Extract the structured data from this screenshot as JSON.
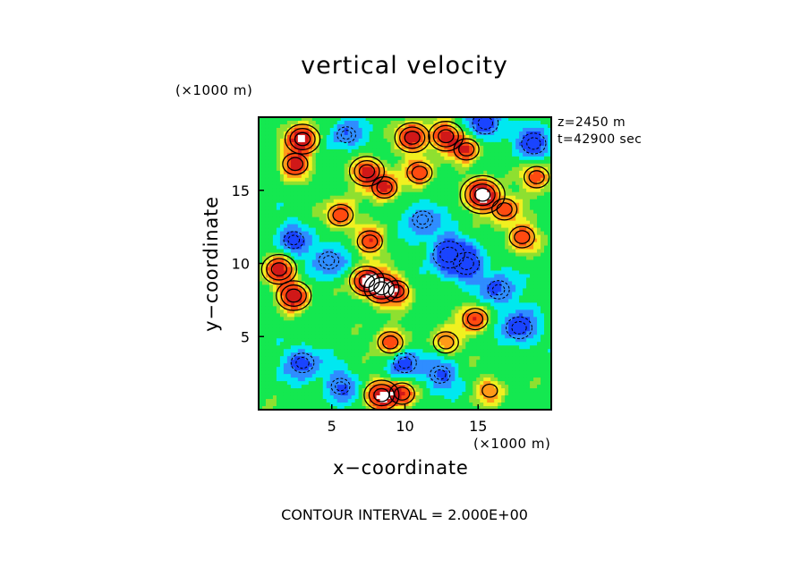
{
  "chart_data": {
    "type": "heatmap",
    "title": "vertical velocity",
    "xlabel": "x−coordinate",
    "ylabel": "y−coordinate",
    "x_multiplier": "(×1000 m)",
    "y_multiplier": "(×1000 m)",
    "xlim": [
      0,
      20
    ],
    "ylim": [
      0,
      20
    ],
    "x_ticks": [
      "5",
      "10",
      "15"
    ],
    "y_ticks": [
      "5",
      "10",
      "15"
    ],
    "annotations": [
      "z=2450 m",
      "t=42900 sec"
    ],
    "footer": "CONTOUR INTERVAL = 2.000E+00",
    "contour_interval": 2.0,
    "colors": {
      "strong_down": "#1a44ff",
      "down": "#2f8dff",
      "weak_down": "#00e8f0",
      "neutral": "#14e850",
      "weak_up": "#8ee030",
      "up": "#f0f020",
      "moderate_up": "#ff9a18",
      "strong_up": "#ff4a10",
      "very_strong_up": "#d01818",
      "extreme_up": "#ffffff"
    },
    "updraft_cores": [
      {
        "x": 3.0,
        "y": 18.5,
        "strength": 3.2
      },
      {
        "x": 2.5,
        "y": 16.8,
        "strength": 2.4
      },
      {
        "x": 5.6,
        "y": 13.3,
        "strength": 2.3
      },
      {
        "x": 7.4,
        "y": 16.3,
        "strength": 2.6
      },
      {
        "x": 8.6,
        "y": 15.2,
        "strength": 2.4
      },
      {
        "x": 10.5,
        "y": 18.6,
        "strength": 3.0
      },
      {
        "x": 11.0,
        "y": 16.2,
        "strength": 2.0
      },
      {
        "x": 7.6,
        "y": 11.5,
        "strength": 2.1
      },
      {
        "x": 12.8,
        "y": 18.7,
        "strength": 2.5
      },
      {
        "x": 14.2,
        "y": 17.8,
        "strength": 2.3
      },
      {
        "x": 15.3,
        "y": 14.7,
        "strength": 3.8
      },
      {
        "x": 16.8,
        "y": 13.7,
        "strength": 2.0
      },
      {
        "x": 18.0,
        "y": 11.8,
        "strength": 2.2
      },
      {
        "x": 19.0,
        "y": 15.9,
        "strength": 2.1
      },
      {
        "x": 1.4,
        "y": 9.6,
        "strength": 2.6
      },
      {
        "x": 2.4,
        "y": 7.8,
        "strength": 2.9
      },
      {
        "x": 7.4,
        "y": 8.8,
        "strength": 3.0
      },
      {
        "x": 8.4,
        "y": 8.3,
        "strength": 2.8
      },
      {
        "x": 9.4,
        "y": 8.1,
        "strength": 2.0
      },
      {
        "x": 9.0,
        "y": 4.6,
        "strength": 2.4
      },
      {
        "x": 12.8,
        "y": 4.6,
        "strength": 1.6
      },
      {
        "x": 14.8,
        "y": 6.2,
        "strength": 2.2
      },
      {
        "x": 8.4,
        "y": 1.0,
        "strength": 3.0
      },
      {
        "x": 9.8,
        "y": 1.1,
        "strength": 2.3
      },
      {
        "x": 15.8,
        "y": 1.3,
        "strength": 1.4
      }
    ],
    "downdraft_cores": [
      {
        "x": 15.5,
        "y": 19.6,
        "strength": 1.8
      },
      {
        "x": 2.4,
        "y": 11.6,
        "strength": 1.4
      },
      {
        "x": 3.0,
        "y": 3.2,
        "strength": 1.6
      },
      {
        "x": 13.0,
        "y": 10.6,
        "strength": 2.2
      },
      {
        "x": 14.2,
        "y": 10.0,
        "strength": 1.8
      },
      {
        "x": 17.8,
        "y": 5.6,
        "strength": 1.8
      },
      {
        "x": 16.4,
        "y": 8.2,
        "strength": 1.5
      },
      {
        "x": 10.0,
        "y": 3.2,
        "strength": 1.6
      },
      {
        "x": 11.2,
        "y": 13.0,
        "strength": 1.4
      },
      {
        "x": 4.8,
        "y": 10.2,
        "strength": 1.4
      },
      {
        "x": 12.4,
        "y": 2.4,
        "strength": 1.4
      },
      {
        "x": 6.0,
        "y": 18.8,
        "strength": 1.3
      },
      {
        "x": 18.8,
        "y": 18.2,
        "strength": 1.7
      },
      {
        "x": 5.6,
        "y": 1.6,
        "strength": 1.3
      }
    ]
  }
}
